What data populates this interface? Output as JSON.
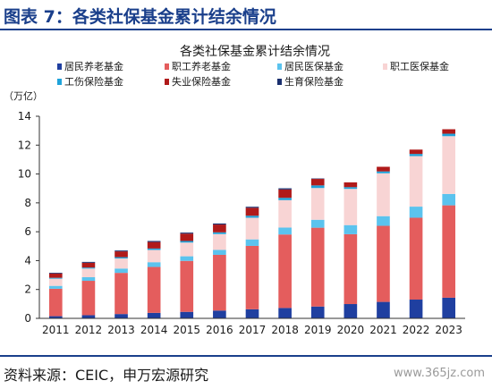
{
  "figure": {
    "label": "图表 7：各类社保基金累计结余情况",
    "source": "资料来源：CEIC，申万宏源研究",
    "watermark": "www.365jz.com"
  },
  "chart_data": {
    "type": "bar",
    "stacked": true,
    "title": "各类社保基金累计结余情况",
    "ylabel": "（万亿）",
    "xlabel": "",
    "ylim": [
      0,
      14
    ],
    "yticks": [
      0,
      2,
      4,
      6,
      8,
      10,
      12,
      14
    ],
    "grid": false,
    "legend_position": "top",
    "categories": [
      "2011",
      "2012",
      "2013",
      "2014",
      "2015",
      "2016",
      "2017",
      "2018",
      "2019",
      "2020",
      "2021",
      "2022",
      "2023"
    ],
    "series": [
      {
        "name": "居民养老基金",
        "color": "#1f3fa0",
        "values": [
          0.15,
          0.22,
          0.3,
          0.38,
          0.45,
          0.54,
          0.63,
          0.72,
          0.82,
          0.99,
          1.14,
          1.3,
          1.43
        ]
      },
      {
        "name": "职工养老基金",
        "color": "#e45d5d",
        "values": [
          1.9,
          2.38,
          2.85,
          3.18,
          3.53,
          3.86,
          4.39,
          5.09,
          5.46,
          4.84,
          5.27,
          5.67,
          6.4
        ]
      },
      {
        "name": "居民医保基金",
        "color": "#5bc3ee",
        "values": [
          0.2,
          0.25,
          0.3,
          0.33,
          0.32,
          0.34,
          0.45,
          0.48,
          0.55,
          0.63,
          0.67,
          0.77,
          0.79
        ]
      },
      {
        "name": "职工医保基金",
        "color": "#f8d4d4",
        "values": [
          0.5,
          0.6,
          0.7,
          0.85,
          0.95,
          1.1,
          1.5,
          1.9,
          2.2,
          2.51,
          2.97,
          3.5,
          4.0
        ]
      },
      {
        "name": "工伤保险基金",
        "color": "#1fa3da",
        "values": [
          0.06,
          0.07,
          0.09,
          0.1,
          0.11,
          0.12,
          0.14,
          0.16,
          0.18,
          0.12,
          0.13,
          0.15,
          0.17
        ]
      },
      {
        "name": "失业保险基金",
        "color": "#b01a1a",
        "values": [
          0.3,
          0.33,
          0.4,
          0.45,
          0.51,
          0.54,
          0.55,
          0.58,
          0.45,
          0.33,
          0.32,
          0.3,
          0.31
        ]
      },
      {
        "name": "生育保险基金",
        "color": "#1a2f6e",
        "values": [
          0.05,
          0.06,
          0.06,
          0.07,
          0.07,
          0.07,
          0.07,
          0.08,
          0.03,
          0.0,
          0.0,
          0.0,
          0.0
        ]
      }
    ]
  }
}
